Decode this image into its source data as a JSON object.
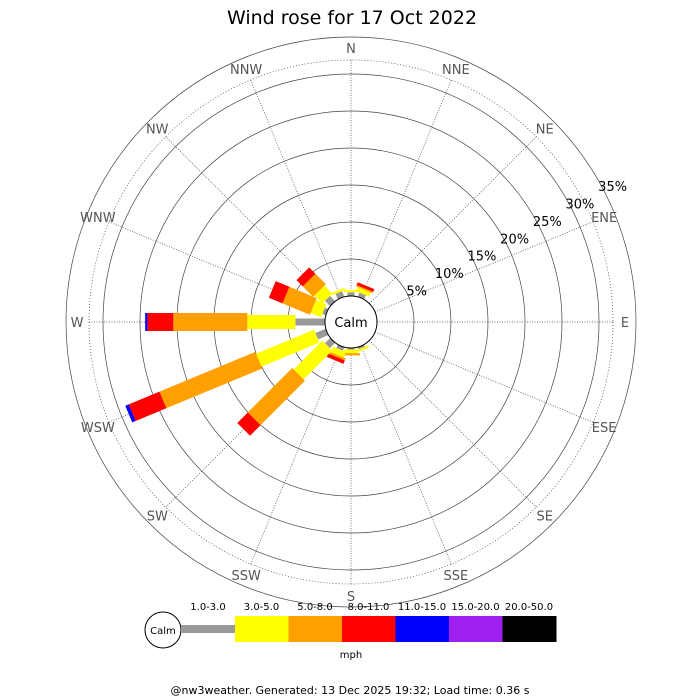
{
  "chart_data": {
    "type": "wind-rose",
    "title": "Wind rose for 17 Oct 2022",
    "directions": [
      "N",
      "NNE",
      "NE",
      "ENE",
      "E",
      "ESE",
      "SE",
      "SSE",
      "S",
      "SSW",
      "SW",
      "WSW",
      "W",
      "WNW",
      "NW",
      "NNW"
    ],
    "rings_percent": [
      5,
      10,
      15,
      20,
      25,
      30,
      35
    ],
    "ring_labels": [
      "5%",
      "10%",
      "15%",
      "20%",
      "25%",
      "30%",
      "35%"
    ],
    "calm_label": "Calm",
    "speed_bins": [
      {
        "range": "1.0-3.0",
        "color": "#999999"
      },
      {
        "range": "3.0-5.0",
        "color": "#ffff00"
      },
      {
        "range": "5.0-8.0",
        "color": "#ff9f00"
      },
      {
        "range": "8.0-11.0",
        "color": "#ff0000"
      },
      {
        "range": "11.0-15.0",
        "color": "#0000ff"
      },
      {
        "range": "15.0-20.0",
        "color": "#9f1fef"
      },
      {
        "range": "20.0-50.0",
        "color": "#000000"
      }
    ],
    "series_percent": {
      "N": [
        0.5,
        0.3,
        0,
        0,
        0,
        0,
        0
      ],
      "NNE": [
        0.6,
        0.6,
        0.2,
        0.4,
        0,
        0,
        0
      ],
      "NE": [
        0,
        0,
        0,
        0,
        0,
        0,
        0
      ],
      "ENE": [
        0,
        0,
        0,
        0,
        0,
        0,
        0
      ],
      "E": [
        0,
        0,
        0,
        0,
        0,
        0,
        0
      ],
      "ESE": [
        0,
        0,
        0,
        0,
        0,
        0,
        0
      ],
      "SE": [
        0,
        0,
        0,
        0,
        0,
        0,
        0
      ],
      "SSE": [
        0.3,
        0.3,
        0,
        0,
        0,
        0,
        0
      ],
      "S": [
        0.2,
        0.5,
        0.3,
        0,
        0,
        0,
        0
      ],
      "SSW": [
        0.5,
        0.8,
        0.3,
        0.5,
        0,
        0,
        0
      ],
      "SW": [
        1.0,
        5.5,
        8.5,
        2.0,
        0,
        0,
        0
      ],
      "WSW": [
        1.5,
        8.5,
        14.0,
        4.5,
        0.5,
        0,
        0
      ],
      "W": [
        4.0,
        6.5,
        10.0,
        3.5,
        0.3,
        0,
        0
      ],
      "WNW": [
        0.5,
        1.5,
        4.0,
        2.0,
        0,
        0,
        0
      ],
      "NW": [
        1.0,
        1.5,
        2.0,
        1.2,
        0,
        0,
        0
      ],
      "NNW": [
        0.8,
        0.3,
        0,
        0,
        0,
        0,
        0
      ]
    },
    "unit": "mph"
  },
  "footer": "@nw3weather. Generated: 13 Dec 2025 19:32; Load time: 0.36 s"
}
